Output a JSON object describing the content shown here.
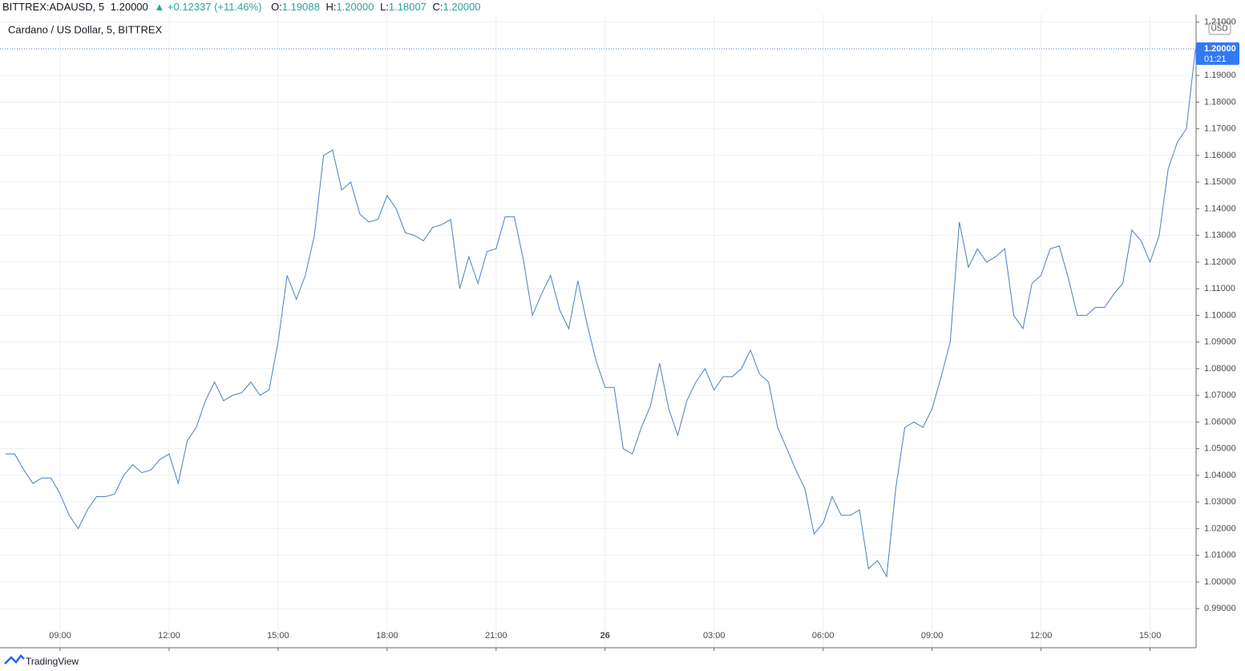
{
  "header": {
    "symbol": "BITTREX:ADAUSD, 5",
    "price": "1.20000",
    "change": "+0.12337 (+11.46%)",
    "o_label": "O:",
    "o_value": "1.19088",
    "h_label": "H:",
    "h_value": "1.20000",
    "l_label": "L:",
    "l_value": "1.18007",
    "c_label": "C:",
    "c_value": "1.20000"
  },
  "footer": {
    "brand": "TradingView"
  },
  "chart_data": {
    "type": "line",
    "title": "Cardano / US Dollar, 5, BITTREX",
    "currency": "USD",
    "color": "#4a7fc1",
    "grid": true,
    "categories": [
      null,
      null,
      null,
      null,
      null,
      null,
      "09:00",
      null,
      null,
      null,
      null,
      null,
      null,
      null,
      null,
      null,
      null,
      null,
      "12:00",
      null,
      null,
      null,
      null,
      null,
      null,
      null,
      null,
      null,
      null,
      null,
      "15:00",
      null,
      null,
      null,
      null,
      null,
      null,
      null,
      null,
      null,
      null,
      null,
      "18:00",
      null,
      null,
      null,
      null,
      null,
      null,
      null,
      null,
      null,
      null,
      null,
      "21:00",
      null,
      null,
      null,
      null,
      null,
      null,
      null,
      null,
      null,
      null,
      null,
      "26",
      null,
      null,
      null,
      null,
      null,
      null,
      null,
      null,
      null,
      null,
      null,
      "03:00",
      null,
      null,
      null,
      null,
      null,
      null,
      null,
      null,
      null,
      null,
      null,
      "06:00",
      null,
      null,
      null,
      null,
      null,
      null,
      null,
      null,
      null,
      null,
      null,
      "09:00",
      null,
      null,
      null,
      null,
      null,
      null,
      null,
      null,
      null,
      null,
      null,
      "12:00",
      null,
      null,
      null,
      null,
      null,
      null,
      null,
      null,
      null,
      null,
      null,
      "15:00",
      null,
      null,
      null,
      null,
      null
    ],
    "values": [
      1.048,
      1.048,
      1.042,
      1.037,
      1.039,
      1.039,
      1.033,
      1.025,
      1.02,
      1.027,
      1.032,
      1.032,
      1.033,
      1.04,
      1.044,
      1.041,
      1.042,
      1.046,
      1.048,
      1.037,
      1.053,
      1.058,
      1.068,
      1.075,
      1.068,
      1.07,
      1.071,
      1.075,
      1.07,
      1.072,
      1.09,
      1.115,
      1.106,
      1.115,
      1.13,
      1.16,
      1.162,
      1.147,
      1.15,
      1.138,
      1.135,
      1.136,
      1.145,
      1.14,
      1.131,
      1.13,
      1.128,
      1.133,
      1.134,
      1.136,
      1.11,
      1.122,
      1.112,
      1.124,
      1.125,
      1.137,
      1.137,
      1.121,
      1.1,
      1.108,
      1.115,
      1.102,
      1.095,
      1.113,
      1.097,
      1.083,
      1.073,
      1.073,
      1.05,
      1.048,
      1.058,
      1.066,
      1.082,
      1.065,
      1.055,
      1.068,
      1.075,
      1.08,
      1.072,
      1.077,
      1.077,
      1.08,
      1.087,
      1.078,
      1.075,
      1.058,
      1.05,
      1.042,
      1.035,
      1.018,
      1.022,
      1.032,
      1.025,
      1.025,
      1.027,
      1.005,
      1.008,
      1.002,
      1.035,
      1.058,
      1.06,
      1.058,
      1.065,
      1.077,
      1.09,
      1.135,
      1.118,
      1.125,
      1.12,
      1.122,
      1.125,
      1.1,
      1.095,
      1.112,
      1.115,
      1.125,
      1.126,
      1.114,
      1.1,
      1.1,
      1.103,
      1.103,
      1.108,
      1.112,
      1.132,
      1.128,
      1.12,
      1.13,
      1.155,
      1.165,
      1.17,
      1.2
    ],
    "ylim": [
      0.9753,
      1.2129
    ],
    "yticks": [
      {
        "value": 0.99,
        "label": "0.99000"
      },
      {
        "value": 1.0,
        "label": "1.00000"
      },
      {
        "value": 1.01,
        "label": "1.01000"
      },
      {
        "value": 1.02,
        "label": "1.02000"
      },
      {
        "value": 1.03,
        "label": "1.03000"
      },
      {
        "value": 1.04,
        "label": "1.04000"
      },
      {
        "value": 1.05,
        "label": "1.05000"
      },
      {
        "value": 1.06,
        "label": "1.06000"
      },
      {
        "value": 1.07,
        "label": "1.07000"
      },
      {
        "value": 1.08,
        "label": "1.08000"
      },
      {
        "value": 1.09,
        "label": "1.09000"
      },
      {
        "value": 1.1,
        "label": "1.10000"
      },
      {
        "value": 1.11,
        "label": "1.11000"
      },
      {
        "value": 1.12,
        "label": "1.12000"
      },
      {
        "value": 1.13,
        "label": "1.13000"
      },
      {
        "value": 1.14,
        "label": "1.14000"
      },
      {
        "value": 1.15,
        "label": "1.15000"
      },
      {
        "value": 1.16,
        "label": "1.16000"
      },
      {
        "value": 1.17,
        "label": "1.17000"
      },
      {
        "value": 1.18,
        "label": "1.18000"
      },
      {
        "value": 1.19,
        "label": "1.19000"
      },
      {
        "value": 1.21,
        "label": "1.21000"
      }
    ],
    "last_price": {
      "value": 1.2,
      "label": "1.20000",
      "countdown": "01:21"
    }
  }
}
